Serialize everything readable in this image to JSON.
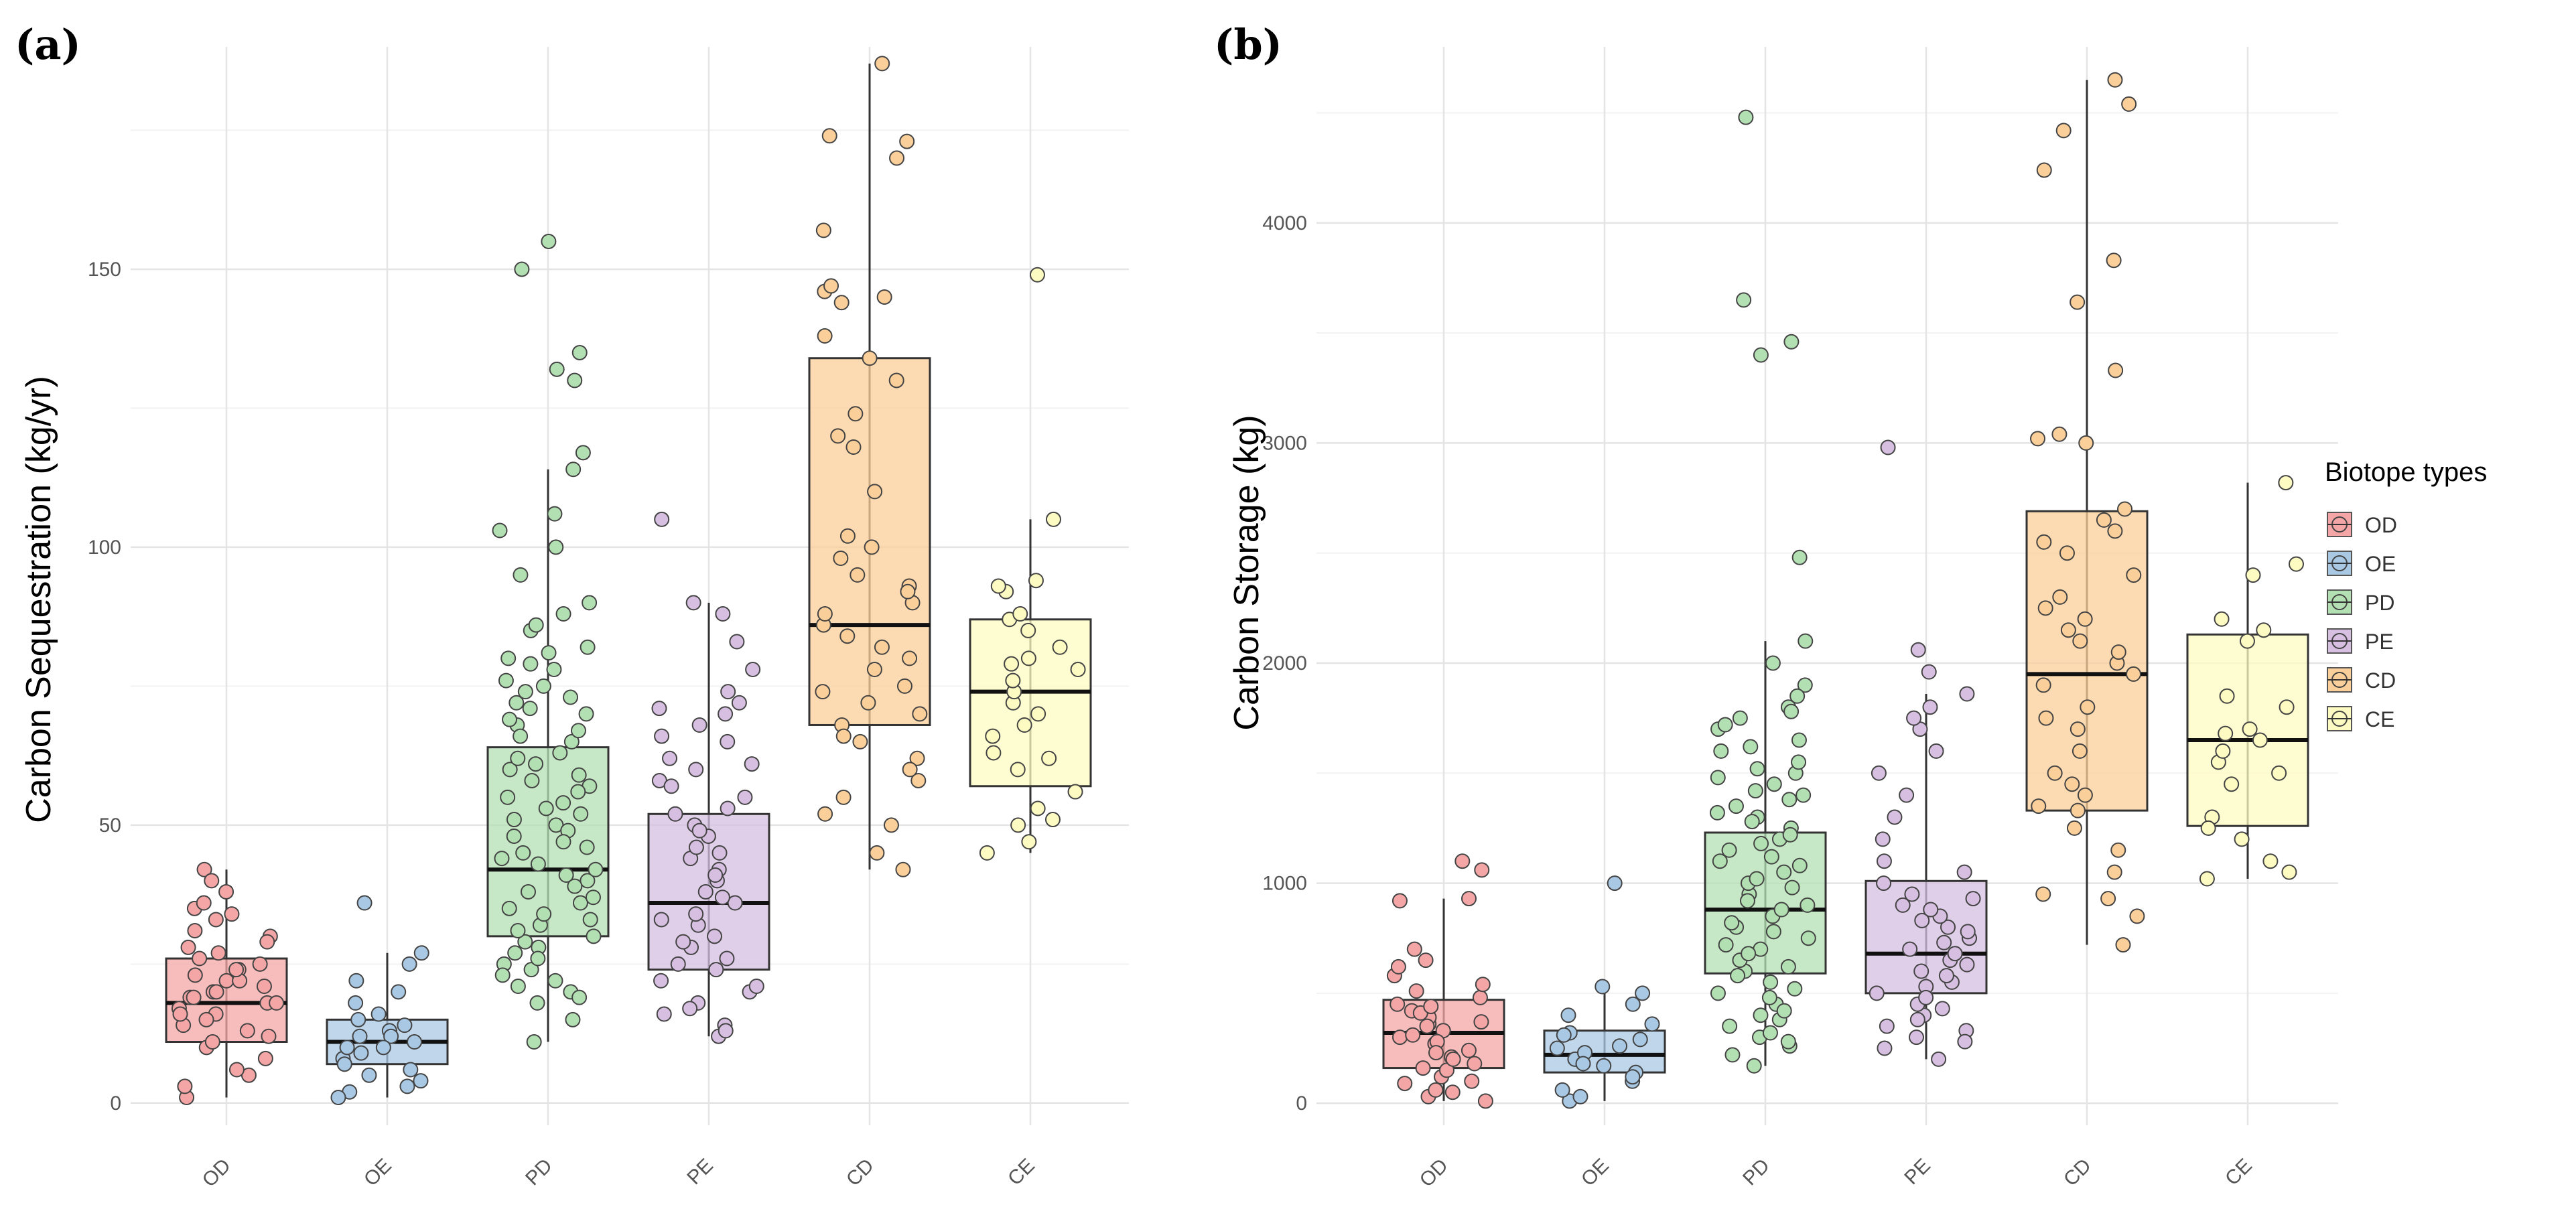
{
  "legend": {
    "title": "Biotope types",
    "entries": [
      {
        "label": "OD",
        "fill": "#f4a6a6"
      },
      {
        "label": "OE",
        "fill": "#a9c8e4"
      },
      {
        "label": "PD",
        "fill": "#b3e0b3"
      },
      {
        "label": "PE",
        "fill": "#d6bfe0"
      },
      {
        "label": "CD",
        "fill": "#fbcf9a"
      },
      {
        "label": "CE",
        "fill": "#fdfbc2"
      }
    ]
  },
  "chart_data": [
    {
      "panel": "(a)",
      "type": "boxplot",
      "ylabel": "Carbon Sequestration (kg/yr)",
      "xlabel": "",
      "categories": [
        "OD",
        "OE",
        "PD",
        "PE",
        "CD",
        "CE"
      ],
      "ylim": [
        -4,
        190
      ],
      "yticks": [
        0,
        50,
        100,
        150
      ],
      "grid": true,
      "boxes": [
        {
          "q1": 11,
          "median": 18,
          "q3": 26,
          "lower": 1,
          "upper": 42
        },
        {
          "q1": 7,
          "median": 11,
          "q3": 15,
          "lower": 1,
          "upper": 27
        },
        {
          "q1": 30,
          "median": 42,
          "q3": 64,
          "lower": 11,
          "upper": 114
        },
        {
          "q1": 24,
          "median": 36,
          "q3": 52,
          "lower": 12,
          "upper": 90
        },
        {
          "q1": 68,
          "median": 86,
          "q3": 134,
          "lower": 42,
          "upper": 187
        },
        {
          "q1": 57,
          "median": 74,
          "q3": 87,
          "lower": 45,
          "upper": 105
        }
      ],
      "points": [
        [
          8,
          12,
          14,
          16,
          18,
          19,
          20,
          22,
          24,
          26,
          28,
          30,
          33,
          35,
          38,
          42,
          1,
          5,
          10,
          15,
          17,
          21,
          23,
          25,
          27,
          31,
          34,
          40,
          13,
          6,
          3,
          19,
          20,
          16,
          18,
          11,
          22,
          24,
          29,
          36
        ],
        [
          2,
          4,
          6,
          8,
          9,
          10,
          11,
          12,
          13,
          14,
          15,
          16,
          18,
          20,
          22,
          25,
          27,
          36,
          3,
          5,
          7,
          12,
          10,
          1
        ],
        [
          11,
          15,
          18,
          20,
          22,
          25,
          27,
          30,
          32,
          35,
          38,
          40,
          42,
          44,
          46,
          48,
          50,
          52,
          55,
          58,
          60,
          62,
          65,
          68,
          70,
          72,
          75,
          78,
          80,
          85,
          88,
          90,
          95,
          100,
          103,
          106,
          114,
          117,
          130,
          132,
          135,
          150,
          155,
          24,
          28,
          33,
          36,
          41,
          45,
          49,
          53,
          57,
          61,
          66,
          71,
          74,
          79,
          82,
          19,
          21,
          23,
          26,
          29,
          31,
          34,
          37,
          39,
          43,
          47,
          51,
          54,
          56,
          59,
          63,
          67,
          69,
          73,
          76,
          81,
          86
        ],
        [
          12,
          14,
          16,
          18,
          20,
          22,
          24,
          26,
          28,
          30,
          32,
          34,
          36,
          38,
          40,
          42,
          44,
          46,
          48,
          50,
          52,
          55,
          58,
          60,
          62,
          65,
          68,
          70,
          72,
          74,
          78,
          83,
          88,
          90,
          105,
          13,
          17,
          21,
          25,
          29,
          33,
          37,
          41,
          45,
          49,
          53,
          57,
          61,
          66,
          71
        ],
        [
          42,
          45,
          50,
          52,
          55,
          58,
          62,
          65,
          68,
          70,
          72,
          75,
          78,
          80,
          84,
          86,
          88,
          90,
          93,
          95,
          98,
          100,
          102,
          110,
          118,
          120,
          124,
          130,
          134,
          138,
          144,
          145,
          146,
          147,
          157,
          170,
          173,
          174,
          187,
          60,
          66,
          74,
          82,
          92
        ],
        [
          45,
          47,
          50,
          51,
          53,
          56,
          60,
          63,
          66,
          68,
          70,
          72,
          74,
          76,
          78,
          80,
          82,
          85,
          87,
          88,
          92,
          93,
          94,
          105,
          149,
          62,
          79
        ]
      ]
    },
    {
      "panel": "(b)",
      "type": "boxplot",
      "ylabel": "Carbon Storage (kg)",
      "xlabel": "",
      "categories": [
        "OD",
        "OE",
        "PD",
        "PE",
        "CD",
        "CE"
      ],
      "ylim": [
        -100,
        4800
      ],
      "yticks": [
        0,
        1000,
        2000,
        3000,
        4000
      ],
      "grid": true,
      "boxes": [
        {
          "q1": 160,
          "median": 320,
          "q3": 470,
          "lower": 10,
          "upper": 930
        },
        {
          "q1": 140,
          "median": 220,
          "q3": 330,
          "lower": 10,
          "upper": 520
        },
        {
          "q1": 590,
          "median": 880,
          "q3": 1230,
          "lower": 170,
          "upper": 2100
        },
        {
          "q1": 500,
          "median": 680,
          "q3": 1010,
          "lower": 200,
          "upper": 1860
        },
        {
          "q1": 1330,
          "median": 1950,
          "q3": 2690,
          "lower": 720,
          "upper": 4650
        },
        {
          "q1": 1260,
          "median": 1650,
          "q3": 2130,
          "lower": 1020,
          "upper": 2820
        }
      ],
      "points": [
        [
          10,
          30,
          60,
          90,
          120,
          150,
          180,
          210,
          240,
          270,
          300,
          330,
          360,
          390,
          420,
          450,
          480,
          510,
          540,
          580,
          620,
          650,
          700,
          920,
          930,
          1060,
          1100,
          200,
          280,
          350,
          410,
          160,
          230,
          310,
          370,
          440,
          100,
          50
        ],
        [
          10,
          30,
          60,
          100,
          140,
          170,
          200,
          230,
          260,
          290,
          320,
          360,
          400,
          450,
          500,
          530,
          1000,
          120,
          180,
          250,
          310
        ],
        [
          170,
          220,
          260,
          300,
          350,
          400,
          450,
          500,
          550,
          600,
          650,
          700,
          750,
          800,
          850,
          900,
          950,
          1000,
          1050,
          1100,
          1150,
          1200,
          1250,
          1300,
          1350,
          1400,
          1450,
          1500,
          1550,
          1600,
          1650,
          1700,
          1750,
          1800,
          1900,
          2000,
          2100,
          2480,
          3400,
          3460,
          3650,
          4480,
          280,
          380,
          480,
          580,
          680,
          780,
          880,
          980,
          1080,
          1180,
          1280,
          1380,
          1480,
          320,
          420,
          520,
          620,
          720,
          820,
          920,
          1020,
          1120,
          1220,
          1320,
          1420,
          1520,
          1620,
          1720,
          1780,
          1850
        ],
        [
          200,
          250,
          300,
          350,
          400,
          450,
          500,
          550,
          600,
          650,
          700,
          750,
          800,
          850,
          900,
          950,
          1000,
          1050,
          1100,
          1200,
          1300,
          1400,
          1500,
          1600,
          1700,
          1750,
          1800,
          1860,
          1960,
          2060,
          2980,
          330,
          430,
          530,
          630,
          730,
          830,
          930,
          280,
          380,
          480,
          580,
          680,
          780,
          880
        ],
        [
          720,
          850,
          950,
          1050,
          1150,
          1250,
          1330,
          1400,
          1450,
          1500,
          1600,
          1700,
          1800,
          1900,
          1950,
          2000,
          2050,
          2100,
          2200,
          2250,
          2300,
          2400,
          2500,
          2600,
          2650,
          2700,
          3000,
          3020,
          3040,
          3330,
          3640,
          3830,
          4240,
          4420,
          4540,
          4650,
          1350,
          1750,
          2150,
          2550,
          930
        ],
        [
          1020,
          1050,
          1100,
          1200,
          1300,
          1450,
          1500,
          1550,
          1600,
          1650,
          1700,
          1800,
          1850,
          2100,
          2150,
          2200,
          2400,
          2450,
          2820,
          1250,
          1680
        ]
      ]
    }
  ]
}
